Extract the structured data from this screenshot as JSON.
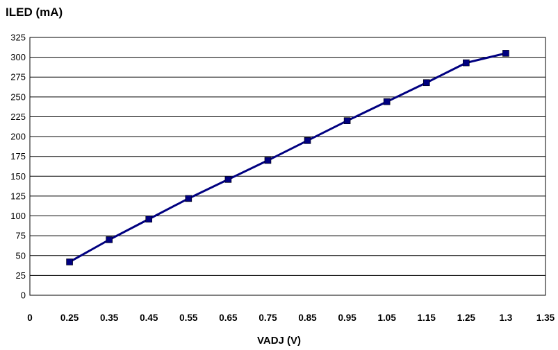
{
  "chart_data": {
    "type": "line",
    "ylabel": "ILED (mA)",
    "xlabel": "VADJ (V)",
    "x_tick_labels": [
      "0",
      "0.25",
      "0.35",
      "0.45",
      "0.55",
      "0.65",
      "0.75",
      "0.85",
      "0.95",
      "1.05",
      "1.15",
      "1.25",
      "1.3",
      "1.35"
    ],
    "y_tick_labels": [
      "0",
      "25",
      "50",
      "75",
      "100",
      "125",
      "150",
      "175",
      "200",
      "225",
      "250",
      "275",
      "300",
      "325"
    ],
    "ylim": [
      0,
      325
    ],
    "grid": "horizontal",
    "series": [
      {
        "color": "#000080",
        "marker": "square",
        "x": [
          0.25,
          0.35,
          0.45,
          0.55,
          0.65,
          0.75,
          0.85,
          0.95,
          1.05,
          1.15,
          1.25,
          1.3
        ],
        "values": [
          42,
          70,
          96,
          122,
          146,
          170,
          195,
          220,
          244,
          268,
          293,
          305
        ]
      }
    ]
  }
}
